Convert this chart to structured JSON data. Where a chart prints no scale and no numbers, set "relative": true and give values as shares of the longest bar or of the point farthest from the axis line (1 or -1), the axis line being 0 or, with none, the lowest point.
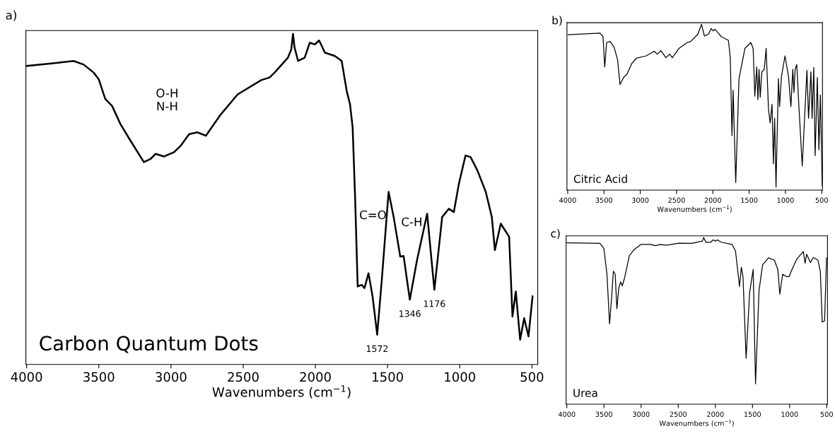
{
  "chart_data": [
    {
      "type": "line",
      "title": "Carbon Quantum Dots",
      "xlabel": "Wavenumbers (cm$^{−1}$)",
      "relative": true,
      "tick_labels": "x",
      "color": "#000000",
      "annotations": [
        "a)",
        "O-H\nN-H",
        "C=O",
        "C-H",
        {
          "text": "1572",
          "x": 1572,
          "y": 0.09
        },
        {
          "text": "1346",
          "x": 1346,
          "y": 0.196
        },
        {
          "text": "1176",
          "x": 1176,
          "y": 0.226
        }
      ],
      "xlim": [
        4005,
        460
      ],
      "xticks": [
        4000,
        3500,
        3000,
        2500,
        2000,
        1500,
        1000,
        500
      ],
      "x": [
        4000,
        3814,
        3675,
        3605,
        3536,
        3501,
        3455,
        3408,
        3350,
        3281,
        3188,
        3141,
        3106,
        3048,
        2979,
        2932,
        2874,
        2816,
        2758,
        2654,
        2538,
        2375,
        2317,
        2282,
        2190,
        2167,
        2155,
        2144,
        2120,
        2074,
        2039,
        2004,
        1974,
        1934,
        1865,
        1818,
        1783,
        1760,
        1742,
        1725,
        1707,
        1679,
        1660,
        1632,
        1604,
        1572,
        1540,
        1493,
        1458,
        1412,
        1389,
        1346,
        1296,
        1226,
        1176,
        1122,
        1076,
        1041,
        1006,
        960,
        925,
        878,
        820,
        778,
        757,
        716,
        658,
        635,
        612,
        582,
        554,
        524,
        496
      ],
      "values": [
        0.903,
        0.911,
        0.918,
        0.907,
        0.883,
        0.863,
        0.803,
        0.782,
        0.727,
        0.677,
        0.612,
        0.622,
        0.637,
        0.629,
        0.642,
        0.662,
        0.697,
        0.702,
        0.692,
        0.757,
        0.817,
        0.86,
        0.868,
        0.883,
        0.928,
        0.953,
        1.0,
        0.958,
        0.918,
        0.928,
        0.973,
        0.968,
        0.98,
        0.943,
        0.933,
        0.918,
        0.827,
        0.787,
        0.717,
        0.507,
        0.236,
        0.241,
        0.231,
        0.276,
        0.206,
        0.09,
        0.256,
        0.522,
        0.446,
        0.326,
        0.328,
        0.196,
        0.316,
        0.456,
        0.226,
        0.446,
        0.471,
        0.461,
        0.547,
        0.632,
        0.627,
        0.587,
        0.522,
        0.446,
        0.346,
        0.426,
        0.386,
        0.145,
        0.221,
        0.075,
        0.14,
        0.085,
        0.206
      ]
    },
    {
      "type": "line",
      "title": "Citric Acid",
      "xlabel": "Wavenumbers (cm$^{−1}$)",
      "relative": true,
      "tick_labels": "x",
      "color": "#000000",
      "annotations": [
        "b)"
      ],
      "xlim": [
        4010,
        490
      ],
      "xticks": [
        4000,
        3500,
        3000,
        2500,
        2000,
        1500,
        1000,
        500
      ],
      "x": [
        3994,
        3555,
        3513,
        3490,
        3464,
        3416,
        3360,
        3312,
        3279,
        3230,
        3182,
        3117,
        3052,
        2922,
        2808,
        2766,
        2717,
        2646,
        2597,
        2558,
        2467,
        2354,
        2305,
        2208,
        2156,
        2117,
        2062,
        2023,
        1997,
        1971,
        1883,
        1786,
        1760,
        1737,
        1721,
        1685,
        1640,
        1558,
        1477,
        1445,
        1422,
        1396,
        1380,
        1364,
        1348,
        1325,
        1292,
        1266,
        1234,
        1211,
        1185,
        1166,
        1149,
        1130,
        1097,
        1081,
        1055,
        1006,
        958,
        925,
        899,
        883,
        867,
        844,
        818,
        769,
        704,
        682,
        649,
        633,
        610,
        591,
        561,
        539,
        519,
        493
      ],
      "values": [
        0.937,
        0.947,
        0.925,
        0.743,
        0.89,
        0.897,
        0.862,
        0.785,
        0.637,
        0.679,
        0.7,
        0.764,
        0.796,
        0.809,
        0.838,
        0.82,
        0.841,
        0.799,
        0.82,
        0.799,
        0.855,
        0.89,
        0.897,
        0.94,
        1.0,
        0.93,
        0.94,
        0.975,
        0.961,
        0.97,
        0.925,
        0.904,
        0.799,
        0.328,
        0.602,
        0.046,
        0.672,
        0.855,
        0.89,
        0.855,
        0.567,
        0.743,
        0.546,
        0.728,
        0.56,
        0.714,
        0.728,
        0.855,
        0.489,
        0.405,
        0.518,
        0.159,
        0.433,
        0.018,
        0.672,
        0.504,
        0.686,
        0.809,
        0.686,
        0.504,
        0.728,
        0.588,
        0.728,
        0.757,
        0.532,
        0.145,
        0.722,
        0.433,
        0.714,
        0.433,
        0.74,
        0.208,
        0.679,
        0.243,
        0.574,
        0.025
      ]
    },
    {
      "type": "line",
      "title": "Urea",
      "xlabel": "Wavenumbers (cm$^{−1}$)",
      "relative": true,
      "tick_labels": "x",
      "color": "#000000",
      "annotations": [
        "c)"
      ],
      "xlim": [
        4010,
        490
      ],
      "xticks": [
        4000,
        3500,
        3000,
        2500,
        2000,
        1500,
        1000,
        500
      ],
      "x": [
        4000,
        3555,
        3501,
        3460,
        3425,
        3397,
        3374,
        3349,
        3327,
        3301,
        3276,
        3254,
        3222,
        3158,
        3095,
        3000,
        2873,
        2809,
        2746,
        2650,
        2491,
        2317,
        2174,
        2158,
        2126,
        2063,
        2031,
        1999,
        1974,
        1920,
        1777,
        1729,
        1675,
        1650,
        1628,
        1586,
        1539,
        1491,
        1459,
        1412,
        1364,
        1285,
        1205,
        1158,
        1132,
        1094,
        1046,
        1005,
        983,
        903,
        815,
        792,
        770,
        719,
        681,
        618,
        586,
        561,
        529,
        503
      ],
      "values": [
        0.968,
        0.965,
        0.934,
        0.78,
        0.482,
        0.64,
        0.798,
        0.78,
        0.573,
        0.696,
        0.734,
        0.71,
        0.759,
        0.892,
        0.927,
        0.959,
        0.959,
        0.951,
        0.958,
        0.955,
        0.966,
        0.965,
        0.979,
        1.0,
        0.972,
        0.972,
        0.986,
        0.979,
        0.986,
        0.972,
        0.959,
        0.92,
        0.707,
        0.822,
        0.766,
        0.276,
        0.668,
        0.808,
        0.122,
        0.682,
        0.836,
        0.878,
        0.864,
        0.808,
        0.661,
        0.78,
        0.766,
        0.766,
        0.794,
        0.871,
        0.916,
        0.846,
        0.899,
        0.85,
        0.881,
        0.864,
        0.794,
        0.493,
        0.5,
        0.878
      ]
    }
  ]
}
